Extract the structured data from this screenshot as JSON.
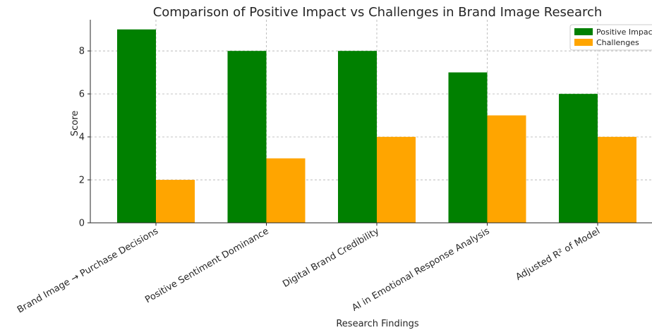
{
  "chart_data": {
    "type": "bar",
    "title": "Comparison of Positive Impact vs Challenges in Brand Image Research",
    "xlabel": "Research Findings",
    "ylabel": "Score",
    "categories": [
      "Brand Image → Purchase Decisions",
      "Positive Sentiment Dominance",
      "Digital Brand Credibility",
      "AI in Emotional Response Analysis",
      "Adjusted R² of Model"
    ],
    "series": [
      {
        "name": "Positive Impact",
        "values": [
          9,
          8,
          8,
          7,
          6
        ],
        "color": "#008000"
      },
      {
        "name": "Challenges",
        "values": [
          2,
          3,
          4,
          5,
          4
        ],
        "color": "#FFA500"
      }
    ],
    "ylim": [
      0,
      9.45
    ],
    "yticks": [
      0,
      2,
      4,
      6,
      8
    ],
    "grid": true,
    "legend_position": "top-right"
  }
}
